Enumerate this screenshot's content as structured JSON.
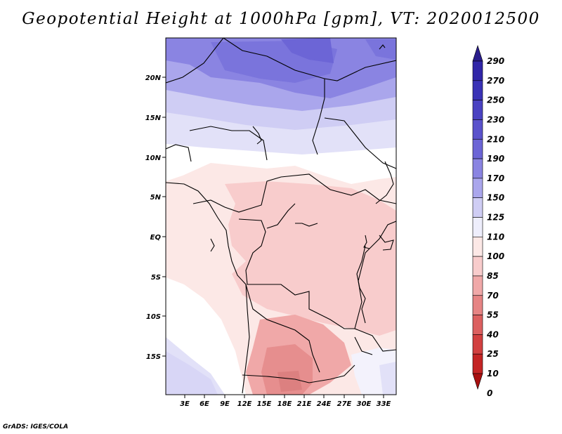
{
  "title": "Geopotential Height at 1000hPa [gpm], VT: 2020012500",
  "credit": "GrADS: IGES/COLA",
  "map": {
    "lat_ticks": [
      "20N",
      "15N",
      "10N",
      "5N",
      "EQ",
      "5S",
      "10S",
      "15S"
    ],
    "lon_ticks": [
      "3E",
      "6E",
      "9E",
      "12E",
      "15E",
      "18E",
      "21E",
      "24E",
      "27E",
      "30E",
      "33E"
    ]
  },
  "colorbar": {
    "labels": [
      "290",
      "270",
      "250",
      "230",
      "210",
      "190",
      "170",
      "150",
      "125",
      "110",
      "100",
      "85",
      "70",
      "55",
      "40",
      "25",
      "10",
      "0"
    ],
    "colors": [
      "#2a1d8c",
      "#3126a8",
      "#3a32b6",
      "#4a42c2",
      "#5a52cc",
      "#6c65d6",
      "#8a84e2",
      "#aaa6ec",
      "#cfcdf4",
      "#eeeefc",
      "#fce8e6",
      "#f8cccc",
      "#f0a8a8",
      "#e68484",
      "#dc6060",
      "#d24040",
      "#c42424",
      "#a81010"
    ]
  }
}
